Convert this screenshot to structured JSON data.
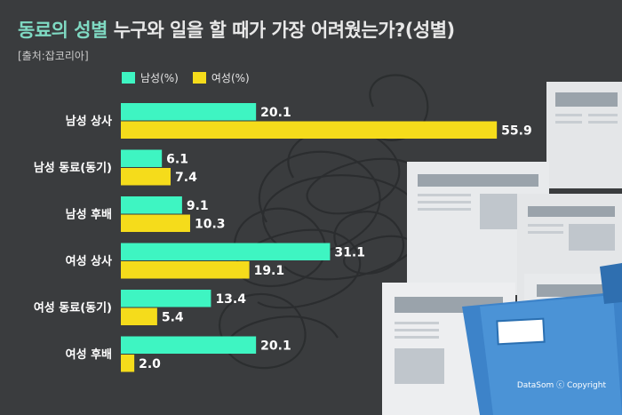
{
  "title": {
    "highlight": "동료의 성별",
    "rest": "누구와 일을 할 때가 가장 어려웠는가?(성별)"
  },
  "source": "[출처:잡코리아]",
  "watermark": "DataSom ⓒ Copyright",
  "colors": {
    "male": "#3ef5c2",
    "female": "#f5dc1b",
    "background": "#3a3c3e",
    "label": "#ffffff"
  },
  "chart_data": {
    "type": "bar",
    "orientation": "horizontal",
    "categories": [
      "남성 상사",
      "남성 동료(동기)",
      "남성 후배",
      "여성 상사",
      "여성 동료(동기)",
      "여성 후배"
    ],
    "series": [
      {
        "name": "남성(%)",
        "values": [
          20.1,
          6.1,
          9.1,
          31.1,
          13.4,
          20.1
        ]
      },
      {
        "name": "여성(%)",
        "values": [
          55.9,
          7.4,
          10.3,
          19.1,
          5.4,
          2.0
        ]
      }
    ],
    "xlim": [
      0,
      60
    ],
    "legend": "top-left",
    "grid": false
  }
}
